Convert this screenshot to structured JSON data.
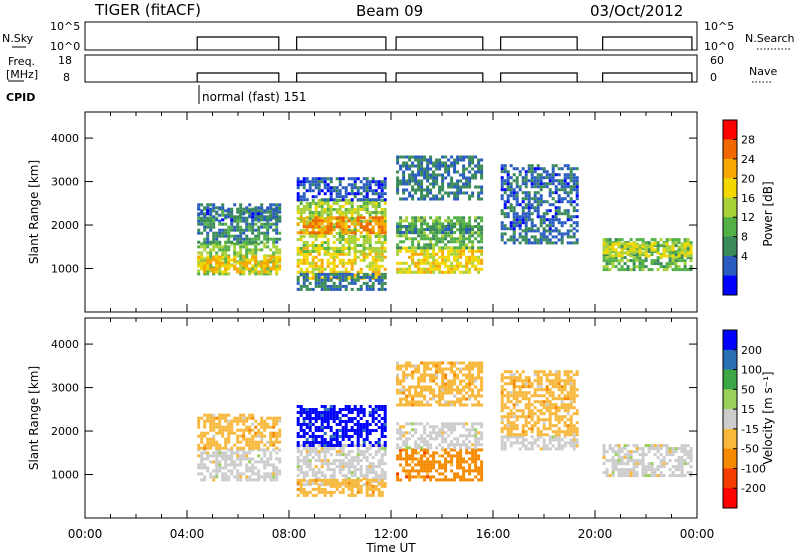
{
  "header": {
    "station": "TIGER (fitACF)",
    "beam": "Beam 09",
    "date": "03/Oct/2012"
  },
  "strip_nsky": {
    "label": "N.Sky",
    "right_label": "N.Search",
    "right_ticks": [
      "10^5",
      "10^0"
    ],
    "left_ticks": [
      "10^5",
      "10^0"
    ]
  },
  "strip_freq": {
    "label_line1": "Freq.",
    "label_line2": "[MHz]",
    "left_ticks": [
      "18",
      "8"
    ],
    "right_label": "Nave",
    "right_ticks": [
      "60",
      "0"
    ]
  },
  "cpid": {
    "label": "CPID",
    "text": "normal (fast) 151"
  },
  "colors": {
    "power": [
      "#0000ff",
      "#2a5cc0",
      "#3a8a5a",
      "#52b046",
      "#a8d13a",
      "#f2d800",
      "#f7a800",
      "#f26800",
      "#ff0000"
    ],
    "velocity": [
      "#ff0000",
      "#f43c00",
      "#f58a00",
      "#f7b83c",
      "#cccccc",
      "#98d05a",
      "#3aa646",
      "#2a70b4",
      "#0000ff"
    ]
  },
  "chart_data": [
    {
      "type": "heatmap",
      "name": "power",
      "ylabel": "Slant Range [km]",
      "ylim": [
        0,
        4600
      ],
      "xlim": [
        0,
        24
      ],
      "yticks": [
        "1000",
        "2000",
        "3000",
        "4000"
      ],
      "colorbar": {
        "label": "Power [dB]",
        "ticks": [
          "4",
          "8",
          "12",
          "16",
          "20",
          "24",
          "28"
        ],
        "range": [
          0,
          32
        ]
      },
      "segments": [
        {
          "x": [
            4.4,
            7.6
          ],
          "bands": [
            {
              "range": [
                850,
                1600
              ],
              "power": 14
            },
            {
              "range": [
                950,
                1300
              ],
              "power": 22
            },
            {
              "range": [
                1600,
                2400
              ],
              "power": 8
            },
            {
              "range": [
                2100,
                2500
              ],
              "power": 5
            }
          ]
        },
        {
          "x": [
            8.3,
            11.8
          ],
          "bands": [
            {
              "range": [
                800,
                1500
              ],
              "power": 20
            },
            {
              "range": [
                1400,
                2600
              ],
              "power": 16
            },
            {
              "range": [
                1800,
                2200
              ],
              "power": 26
            },
            {
              "range": [
                550,
                900
              ],
              "power": 6
            },
            {
              "range": [
                2600,
                3100
              ],
              "power": 4
            }
          ]
        },
        {
          "x": [
            12.2,
            15.6
          ],
          "bands": [
            {
              "range": [
                900,
                1500
              ],
              "power": 20
            },
            {
              "range": [
                1500,
                2200
              ],
              "power": 12
            },
            {
              "range": [
                2600,
                3600
              ],
              "power": 6
            },
            {
              "range": [
                1800,
                2000
              ],
              "power": 8
            }
          ]
        },
        {
          "x": [
            16.3,
            19.3
          ],
          "bands": [
            {
              "range": [
                1600,
                1900
              ],
              "power": 6
            },
            {
              "range": [
                1900,
                3400
              ],
              "power": 5
            }
          ]
        },
        {
          "x": [
            20.3,
            23.8
          ],
          "bands": [
            {
              "range": [
                1000,
                1700
              ],
              "power": 12
            },
            {
              "range": [
                1300,
                1600
              ],
              "power": 18
            }
          ]
        }
      ]
    },
    {
      "type": "heatmap",
      "name": "velocity",
      "xlabel": "Time UT",
      "ylabel": "Slant Range [km]",
      "ylim": [
        0,
        4600
      ],
      "xlim": [
        0,
        24
      ],
      "yticks": [
        "1000",
        "2000",
        "3000",
        "4000"
      ],
      "xticks": [
        "00:00",
        "04:00",
        "08:00",
        "12:00",
        "16:00",
        "20:00",
        "00:00"
      ],
      "colorbar": {
        "label": "Velocity [m s⁻¹]",
        "ticks": [
          "200",
          "100",
          "50",
          "15",
          "-15",
          "-50",
          "-100",
          "-200"
        ]
      },
      "segments": [
        {
          "x": [
            4.4,
            7.6
          ],
          "bands": [
            {
              "range": [
                850,
                1600
              ],
              "velocity": 0
            },
            {
              "range": [
                1600,
                2400
              ],
              "velocity": -30
            }
          ]
        },
        {
          "x": [
            8.3,
            11.8
          ],
          "bands": [
            {
              "range": [
                800,
                1700
              ],
              "velocity": 0
            },
            {
              "range": [
                1700,
                2600
              ],
              "velocity": 200
            },
            {
              "range": [
                550,
                900
              ],
              "velocity": -40
            }
          ]
        },
        {
          "x": [
            12.2,
            15.6
          ],
          "bands": [
            {
              "range": [
                900,
                1600
              ],
              "velocity": -60
            },
            {
              "range": [
                1600,
                2200
              ],
              "velocity": 0
            },
            {
              "range": [
                2600,
                3600
              ],
              "velocity": -20
            }
          ]
        },
        {
          "x": [
            16.3,
            19.3
          ],
          "bands": [
            {
              "range": [
                1600,
                1900
              ],
              "velocity": 0
            },
            {
              "range": [
                1900,
                3400
              ],
              "velocity": -15
            }
          ]
        },
        {
          "x": [
            20.3,
            23.8
          ],
          "bands": [
            {
              "range": [
                1000,
                1700
              ],
              "velocity": 0
            }
          ]
        }
      ]
    }
  ]
}
